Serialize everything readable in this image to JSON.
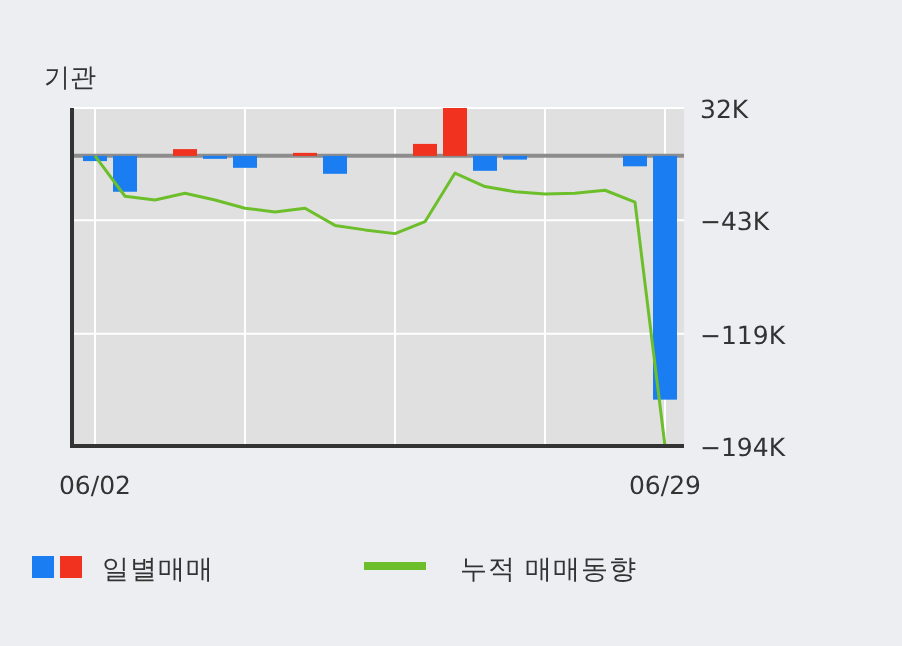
{
  "chart_data": {
    "type": "bar",
    "title": "기관",
    "categories": [
      "06/02",
      null,
      null,
      null,
      null,
      null,
      null,
      null,
      null,
      null,
      null,
      null,
      null,
      null,
      null,
      null,
      null,
      null,
      null,
      "06/29"
    ],
    "series": [
      {
        "name": "일별매매",
        "colors": [
          "#1a7ef2",
          "#1a7ef2",
          "#1a7ef2",
          "#f0321e",
          "#1a7ef2",
          "#1a7ef2",
          "#1a7ef2",
          "#f0321e",
          "#1a7ef2",
          "#1a7ef2",
          "#1a7ef2",
          "#f0321e",
          "#f0321e",
          "#1a7ef2",
          "#1a7ef2",
          "#1a7ef2",
          "#1a7ef2",
          "#1a7ef2",
          "#1a7ef2",
          "#1a7ef2"
        ],
        "values": [
          -3500,
          -24000,
          0,
          4500,
          -2000,
          -8000,
          0,
          2000,
          -12000,
          0,
          0,
          8000,
          32000,
          -10000,
          -2500,
          0,
          0,
          0,
          -7000,
          -163000
        ]
      },
      {
        "name": "누적 매매동향",
        "type": "line",
        "color": "#6cbf2a",
        "values": [
          0,
          -27000,
          -29500,
          -25000,
          -29500,
          -35000,
          -37500,
          -35000,
          -46500,
          -49500,
          -52000,
          -44000,
          -11500,
          -20500,
          -24000,
          -25500,
          -25000,
          -23000,
          -31000,
          -194000
        ]
      }
    ],
    "ylim": [
      -194000,
      32000
    ],
    "yticks": [
      {
        "value": 32000,
        "label": "32K"
      },
      {
        "value": -43000,
        "label": "−43K"
      },
      {
        "value": -119000,
        "label": "−119K"
      },
      {
        "value": -194000,
        "label": "−194K"
      }
    ],
    "ref_lines": [
      {
        "axis": "y",
        "value": 0,
        "color": "#8c8c8c"
      }
    ],
    "grid": true,
    "legend": "bottom"
  }
}
